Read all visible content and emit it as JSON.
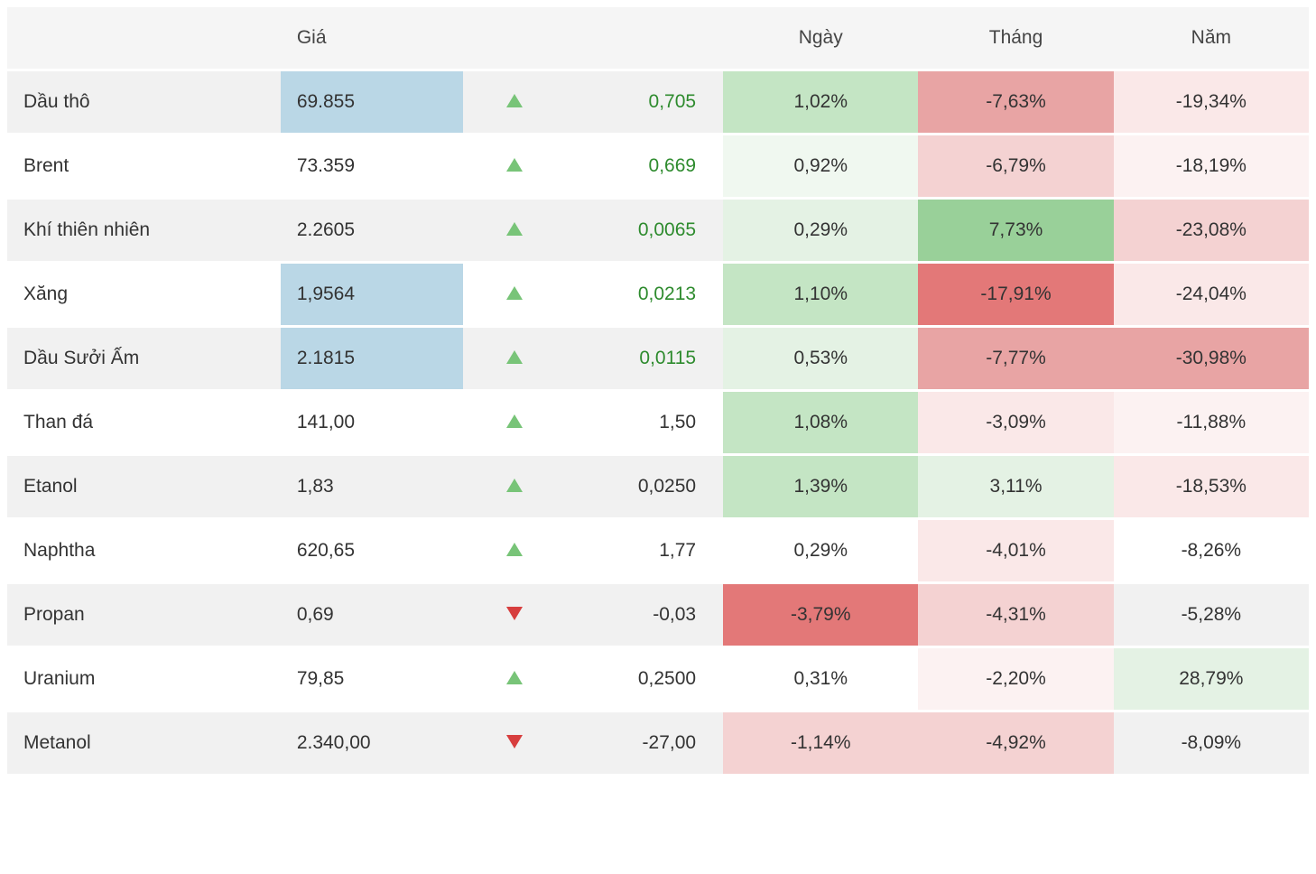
{
  "headers": {
    "price": "Giá",
    "day": "Ngày",
    "month": "Tháng",
    "year": "Năm"
  },
  "colors": {
    "green_strong": "#99d099",
    "green_med": "#c4e5c4",
    "green_light": "#e4f2e4",
    "green_vlight": "#f0f8f0",
    "red_strong": "#e37878",
    "red_med": "#e8a4a4",
    "red_light": "#f4d2d2",
    "red_vlight": "#fae8e8",
    "red_xlight": "#fcf2f2",
    "neutral_odd": "#f1f1f1",
    "neutral_even": "#ffffff",
    "price_highlight": "#bad7e6"
  },
  "rows": [
    {
      "name": "Dầu thô",
      "price": "69.855",
      "price_bg": "price_highlight",
      "dir": "up",
      "change": "0,705",
      "change_cls": "txt-green",
      "day": "1,02%",
      "day_bg": "green_med",
      "month": "-7,63%",
      "month_bg": "red_med",
      "year": "-19,34%",
      "year_bg": "red_vlight"
    },
    {
      "name": "Brent",
      "price": "73.359",
      "price_bg": "neutral_even",
      "dir": "up",
      "change": "0,669",
      "change_cls": "txt-green",
      "day": "0,92%",
      "day_bg": "green_vlight",
      "month": "-6,79%",
      "month_bg": "red_light",
      "year": "-18,19%",
      "year_bg": "red_xlight"
    },
    {
      "name": "Khí thiên nhiên",
      "price": "2.2605",
      "price_bg": "neutral_odd",
      "dir": "up",
      "change": "0,0065",
      "change_cls": "txt-green",
      "day": "0,29%",
      "day_bg": "green_light",
      "month": "7,73%",
      "month_bg": "green_strong",
      "year": "-23,08%",
      "year_bg": "red_light"
    },
    {
      "name": "Xăng",
      "price": "1,9564",
      "price_bg": "price_highlight",
      "dir": "up",
      "change": "0,0213",
      "change_cls": "txt-green",
      "day": "1,10%",
      "day_bg": "green_med",
      "month": "-17,91%",
      "month_bg": "red_strong",
      "year": "-24,04%",
      "year_bg": "red_vlight"
    },
    {
      "name": "Dầu Sưởi Ấm",
      "price": "2.1815",
      "price_bg": "price_highlight",
      "dir": "up",
      "change": "0,0115",
      "change_cls": "txt-green",
      "day": "0,53%",
      "day_bg": "green_light",
      "month": "-7,77%",
      "month_bg": "red_med",
      "year": "-30,98%",
      "year_bg": "red_med"
    },
    {
      "name": "Than đá",
      "price": "141,00",
      "price_bg": "neutral_even",
      "dir": "up",
      "change": "1,50",
      "change_cls": "",
      "day": "1,08%",
      "day_bg": "green_med",
      "month": "-3,09%",
      "month_bg": "red_vlight",
      "year": "-11,88%",
      "year_bg": "red_xlight"
    },
    {
      "name": "Etanol",
      "price": "1,83",
      "price_bg": "neutral_odd",
      "dir": "up",
      "change": "0,0250",
      "change_cls": "",
      "day": "1,39%",
      "day_bg": "green_med",
      "month": "3,11%",
      "month_bg": "green_light",
      "year": "-18,53%",
      "year_bg": "red_vlight"
    },
    {
      "name": "Naphtha",
      "price": "620,65",
      "price_bg": "neutral_even",
      "dir": "up",
      "change": "1,77",
      "change_cls": "",
      "day": "0,29%",
      "day_bg": "neutral_even",
      "month": "-4,01%",
      "month_bg": "red_vlight",
      "year": "-8,26%",
      "year_bg": "neutral_even"
    },
    {
      "name": "Propan",
      "price": "0,69",
      "price_bg": "neutral_odd",
      "dir": "down",
      "change": "-0,03",
      "change_cls": "",
      "day": "-3,79%",
      "day_bg": "red_strong",
      "month": "-4,31%",
      "month_bg": "red_light",
      "year": "-5,28%",
      "year_bg": "neutral_odd"
    },
    {
      "name": "Uranium",
      "price": "79,85",
      "price_bg": "neutral_even",
      "dir": "up",
      "change": "0,2500",
      "change_cls": "",
      "day": "0,31%",
      "day_bg": "neutral_even",
      "month": "-2,20%",
      "month_bg": "red_xlight",
      "year": "28,79%",
      "year_bg": "green_light"
    },
    {
      "name": "Metanol",
      "price": "2.340,00",
      "price_bg": "neutral_odd",
      "dir": "down",
      "change": "-27,00",
      "change_cls": "",
      "day": "-1,14%",
      "day_bg": "red_light",
      "month": "-4,92%",
      "month_bg": "red_light",
      "year": "-8,09%",
      "year_bg": "neutral_odd"
    }
  ]
}
